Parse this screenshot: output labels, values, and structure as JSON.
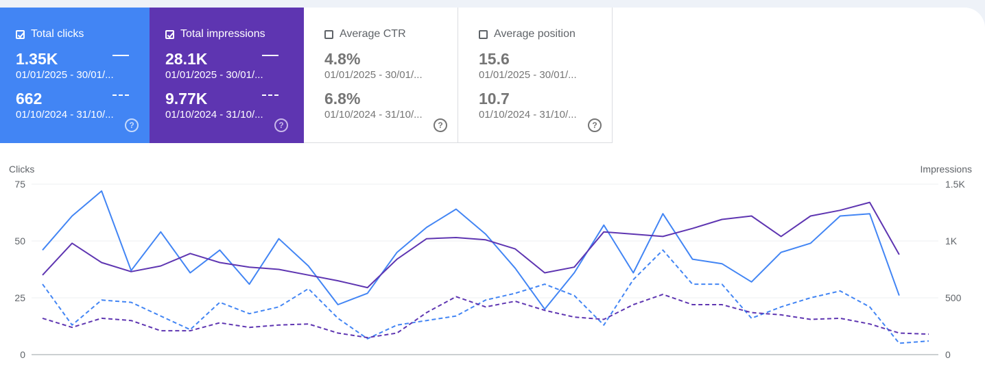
{
  "colors": {
    "clicks": "#4285f4",
    "impressions": "#5e35b1",
    "inactive_text": "#757575"
  },
  "cards": [
    {
      "title": "Total clicks",
      "checked": true,
      "value_current": "1.35K",
      "date_current": "01/01/2025 - 30/01/...",
      "value_previous": "662",
      "date_previous": "01/10/2024 - 31/10/...",
      "help_icon": "help-icon"
    },
    {
      "title": "Total impressions",
      "checked": true,
      "value_current": "28.1K",
      "date_current": "01/01/2025 - 30/01/...",
      "value_previous": "9.77K",
      "date_previous": "01/10/2024 - 31/10/...",
      "help_icon": "help-icon"
    },
    {
      "title": "Average CTR",
      "checked": false,
      "value_current": "4.8%",
      "date_current": "01/01/2025 - 30/01/...",
      "value_previous": "6.8%",
      "date_previous": "01/10/2024 - 31/10/...",
      "help_icon": "help-icon"
    },
    {
      "title": "Average position",
      "checked": false,
      "value_current": "15.6",
      "date_current": "01/01/2025 - 30/01/...",
      "value_previous": "10.7",
      "date_previous": "01/10/2024 - 31/10/...",
      "help_icon": "help-icon"
    }
  ],
  "chart_data": {
    "type": "line",
    "ylabel": "Clicks",
    "y2label": "Impressions",
    "ylim": [
      0,
      75
    ],
    "y2lim": [
      0,
      1500
    ],
    "y_ticks": [
      "0",
      "25",
      "50",
      "75"
    ],
    "y2_ticks": [
      "0",
      "500",
      "1K",
      "1.5K"
    ],
    "grid": true,
    "series": [
      {
        "axis": "left",
        "style": "solid",
        "color": "#4285f4",
        "values": [
          46,
          61,
          72,
          37,
          54,
          36,
          46,
          31,
          51,
          39,
          22,
          27,
          45,
          56,
          64,
          53,
          38,
          20,
          36,
          57,
          36,
          62,
          42,
          40,
          32,
          45,
          49,
          61,
          62,
          26
        ]
      },
      {
        "axis": "right",
        "style": "solid",
        "color": "#5e35b1",
        "values": [
          700,
          980,
          810,
          730,
          780,
          890,
          810,
          770,
          750,
          700,
          650,
          590,
          840,
          1020,
          1030,
          1010,
          930,
          720,
          770,
          1080,
          1060,
          1040,
          1110,
          1190,
          1220,
          1040,
          1220,
          1270,
          1340,
          880
        ]
      },
      {
        "axis": "left",
        "style": "dashed",
        "color": "#4285f4",
        "values": [
          31,
          13,
          24,
          23,
          17,
          11,
          23,
          18,
          21,
          29,
          16,
          7,
          13,
          15,
          17,
          24,
          27,
          31,
          26,
          13,
          33,
          46,
          31,
          31,
          16,
          21,
          25,
          28,
          21,
          5,
          6
        ]
      },
      {
        "axis": "right",
        "style": "dashed",
        "color": "#5e35b1",
        "values": [
          320,
          240,
          320,
          300,
          210,
          210,
          280,
          240,
          260,
          270,
          190,
          150,
          190,
          370,
          510,
          420,
          470,
          390,
          330,
          310,
          440,
          530,
          440,
          440,
          370,
          350,
          310,
          320,
          270,
          190,
          180
        ]
      }
    ]
  }
}
